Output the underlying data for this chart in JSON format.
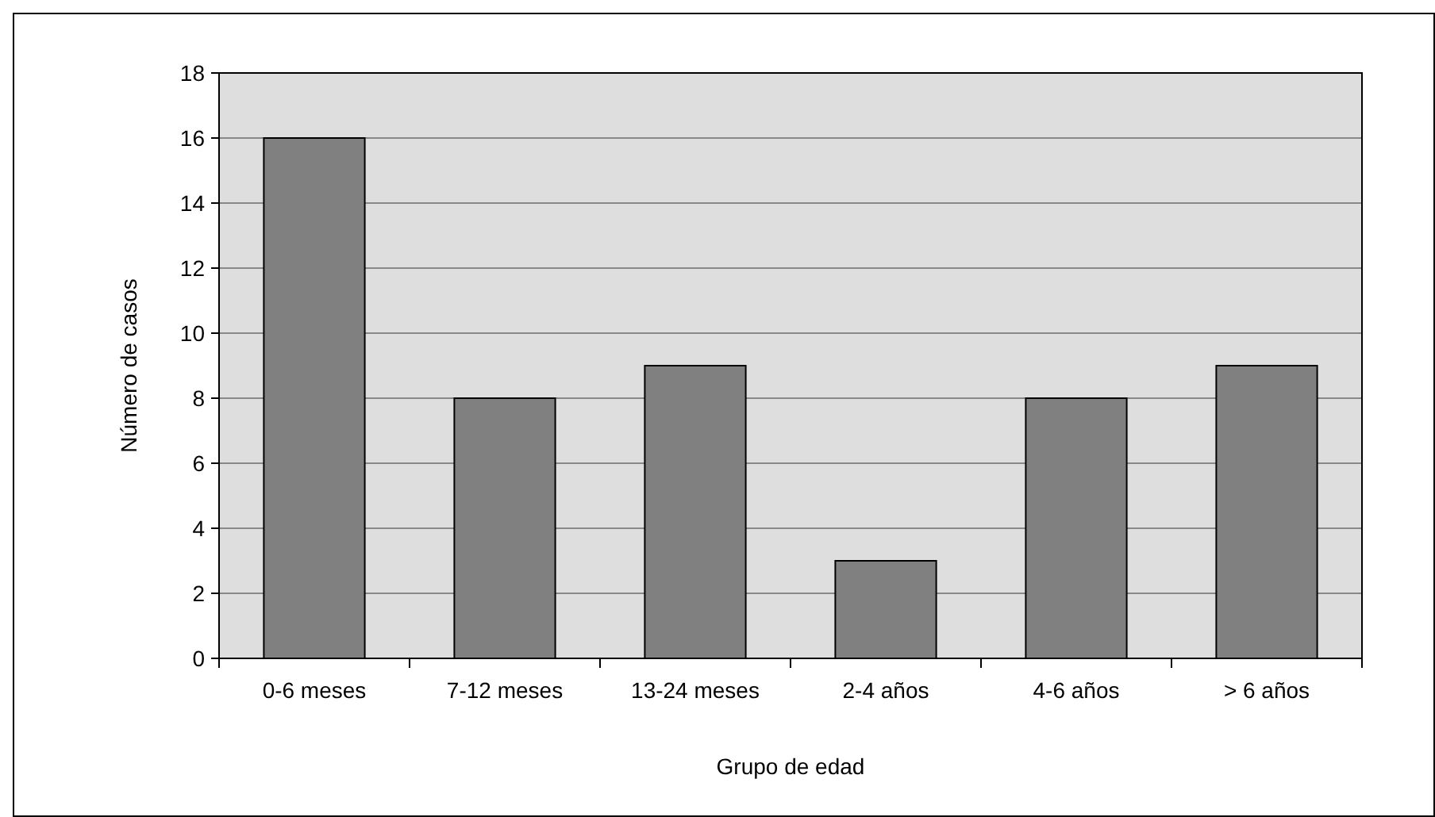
{
  "chart_data": {
    "type": "bar",
    "xlabel": "Grupo de edad",
    "ylabel": "Número de casos",
    "categories": [
      "0-6 meses",
      "7-12 meses",
      "13-24 meses",
      "2-4 años",
      "4-6 años",
      "> 6 años"
    ],
    "values": [
      16,
      8,
      9,
      3,
      8,
      9
    ],
    "color": "#808080",
    "ylim": [
      0,
      18
    ],
    "yticks": [
      0,
      2,
      4,
      6,
      8,
      10,
      12,
      14,
      16,
      18
    ],
    "grid": "y"
  }
}
